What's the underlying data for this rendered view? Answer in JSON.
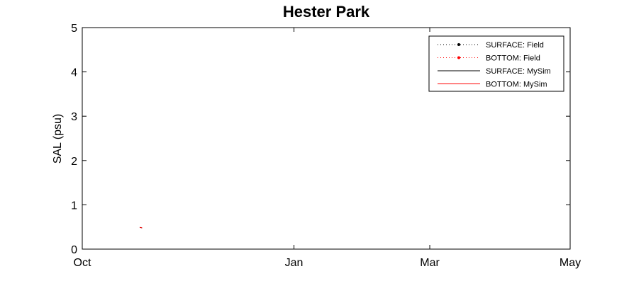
{
  "chart_data": {
    "type": "line",
    "title": "Hester Park",
    "xlabel": "",
    "ylabel": "SAL (psu)",
    "x_ticks": [
      "Oct",
      "Jan",
      "Mar",
      "May"
    ],
    "x_tick_dates": [
      "2000-10-01",
      "2001-01-01",
      "2001-03-01",
      "2001-05-01"
    ],
    "xlim": [
      "2000-10-01",
      "2001-05-01"
    ],
    "ylim": [
      0,
      5
    ],
    "y_ticks": [
      0,
      1,
      2,
      3,
      4,
      5
    ],
    "grid": false,
    "legend_position": "top-right",
    "series": [
      {
        "name": "SURFACE: Field",
        "color": "#000000",
        "style": "dotted-marker",
        "x": [],
        "y": []
      },
      {
        "name": "BOTTOM: Field",
        "color": "#ff0000",
        "style": "dotted-marker",
        "x": [],
        "y": []
      },
      {
        "name": "SURFACE: MySim",
        "color": "#000000",
        "style": "solid",
        "x": [
          "2000-10-26",
          "2000-10-27"
        ],
        "y": [
          0.49,
          0.48
        ]
      },
      {
        "name": "BOTTOM: MySim",
        "color": "#ff0000",
        "style": "solid",
        "x": [
          "2000-10-26",
          "2000-10-27"
        ],
        "y": [
          0.49,
          0.48
        ]
      }
    ]
  }
}
